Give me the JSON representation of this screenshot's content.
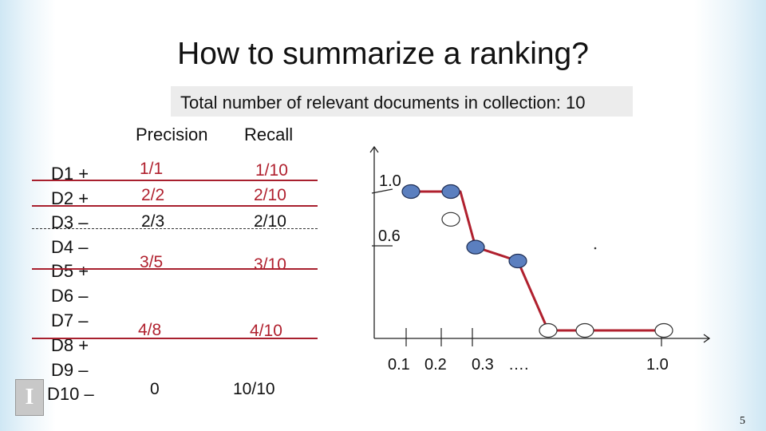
{
  "title": "How to summarize a ranking?",
  "banner": "Total  number of relevant documents in collection:  10",
  "columns": {
    "precision": "Precision",
    "recall": "Recall"
  },
  "documents": [
    "D1 +",
    "D2 +",
    "D3 –",
    "D4 –",
    "D5 +",
    "D6 –",
    "D7 –",
    "D8 +",
    "D9 –",
    "D10 –"
  ],
  "precision_values": [
    "1/1",
    "2/2",
    "2/3",
    "3/5",
    "4/8",
    "0"
  ],
  "recall_values": [
    "1/10",
    "2/10",
    "2/10",
    "3/10",
    "4/10",
    "10/10"
  ],
  "colors": {
    "accent": "#b0202e",
    "point_fill": "#5b7fbf"
  },
  "chart_data": {
    "type": "line",
    "x_ticks": [
      "0.1",
      "0.2",
      "0.3",
      "….",
      "1.0"
    ],
    "y_ticks": [
      "1.0",
      "0.6"
    ],
    "points_relevant": [
      [
        0.1,
        1.0
      ],
      [
        0.2,
        1.0
      ],
      [
        0.3,
        0.6
      ],
      [
        0.4,
        0.5
      ]
    ],
    "points_nonrelevant": [
      [
        0.2,
        0.8
      ],
      [
        0.5,
        0.0
      ],
      [
        0.6,
        0.0
      ],
      [
        1.0,
        0.0
      ]
    ],
    "curve": [
      [
        0.1,
        1.0
      ],
      [
        0.22,
        1.0
      ],
      [
        0.3,
        0.6
      ],
      [
        0.4,
        0.5
      ],
      [
        0.5,
        0.0
      ],
      [
        1.0,
        0.0
      ]
    ]
  },
  "page_number": "5"
}
